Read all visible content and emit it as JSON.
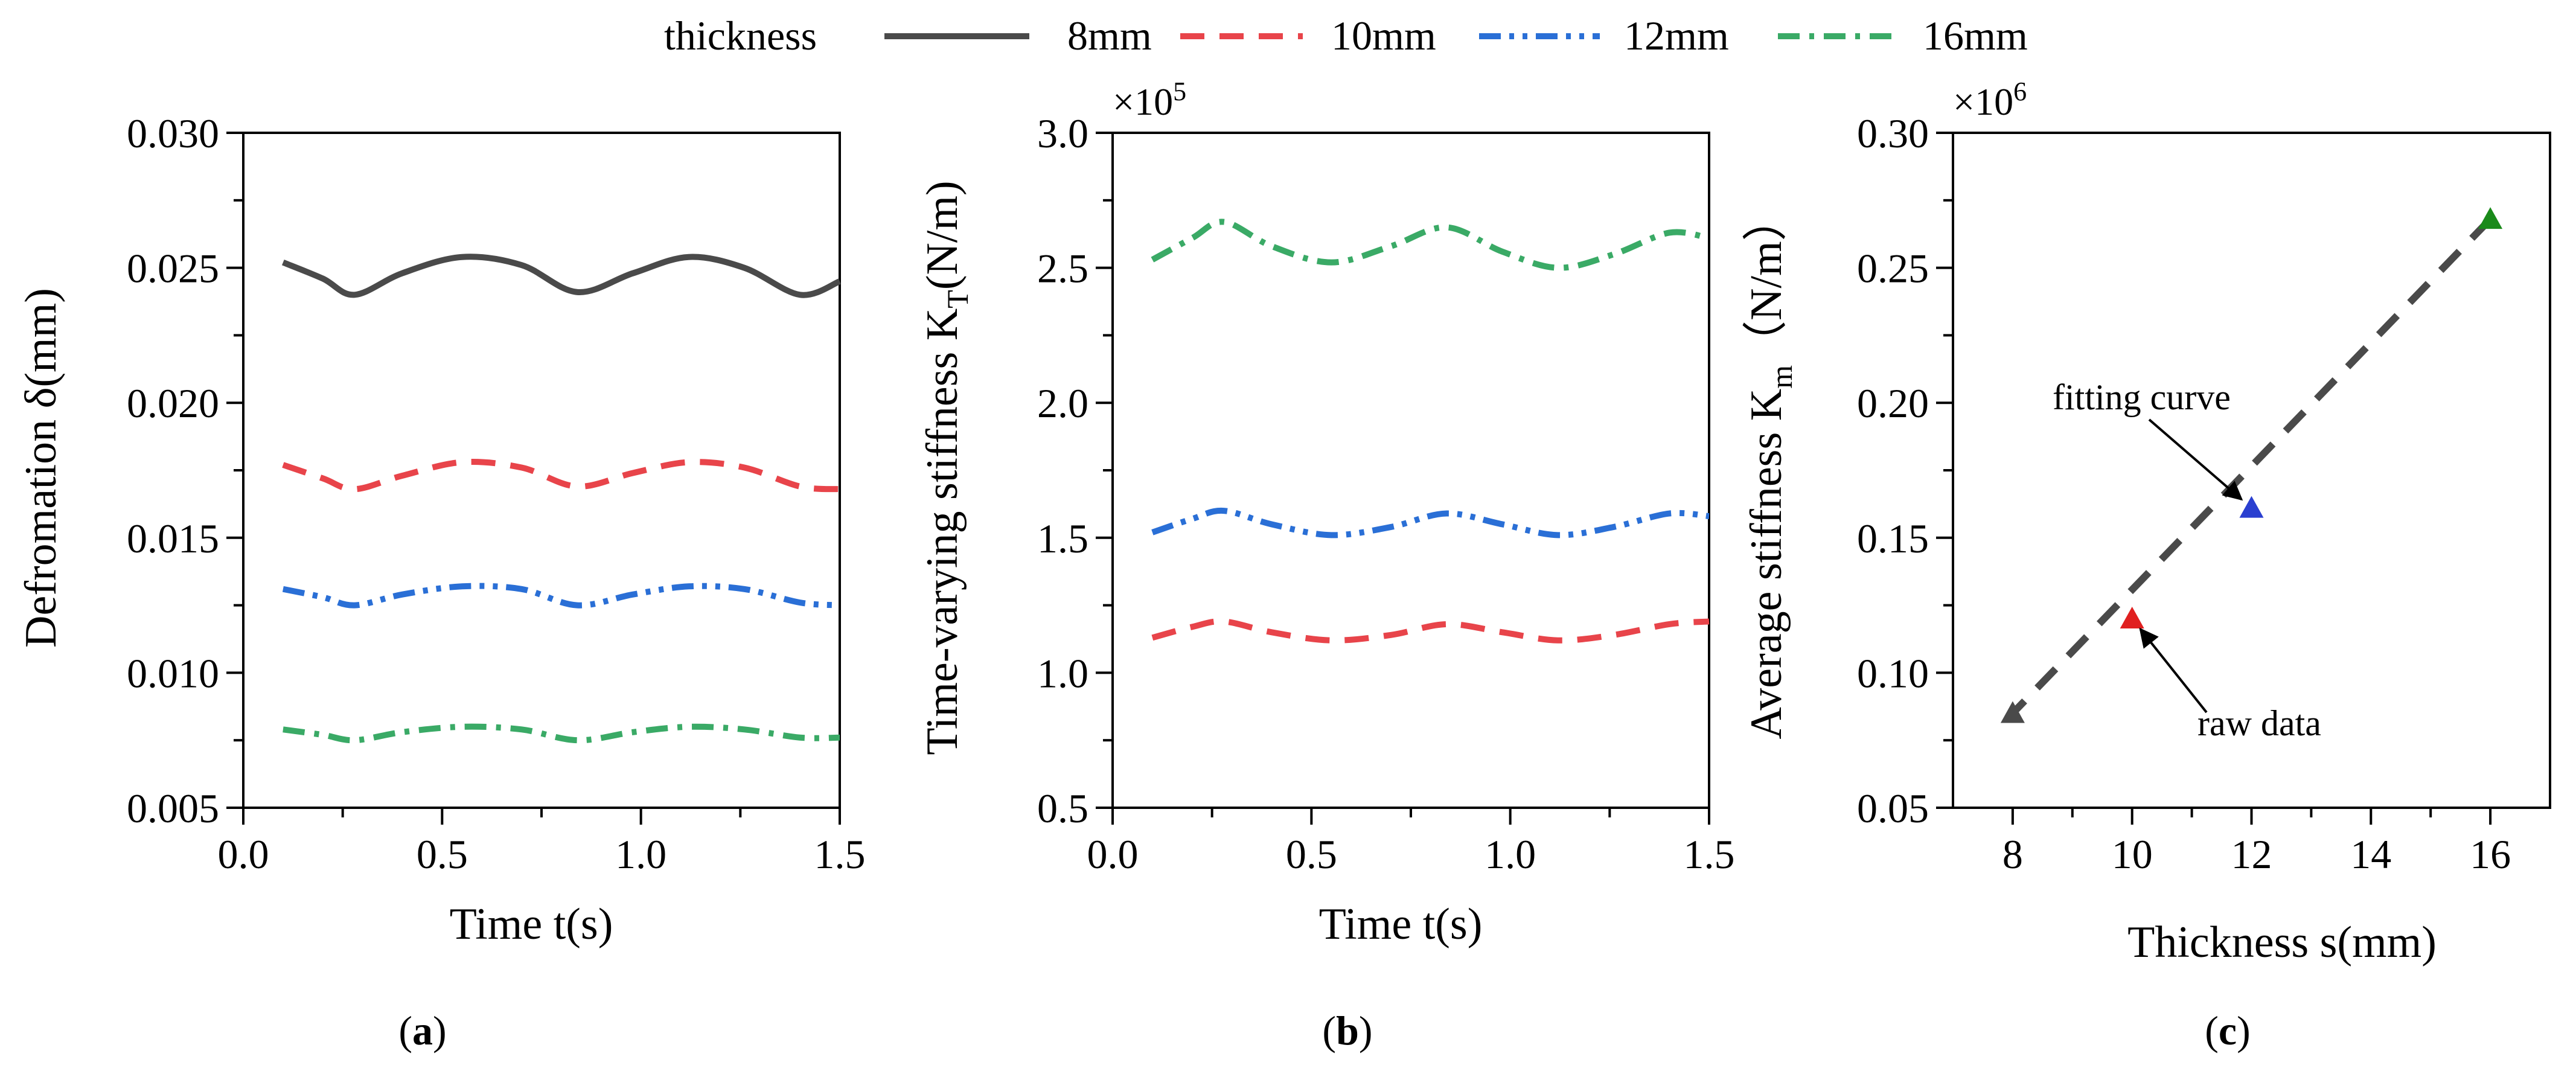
{
  "legend": {
    "title": "thickness",
    "entries": [
      {
        "label": "8mm",
        "color": "#4a4a4a",
        "style": "solid"
      },
      {
        "label": "10mm",
        "color": "#e8444a",
        "style": "dash"
      },
      {
        "label": "12mm",
        "color": "#2a6fd6",
        "style": "dashdotdot"
      },
      {
        "label": "16mm",
        "color": "#3aaa66",
        "style": "dashdot"
      }
    ]
  },
  "chart_data": [
    {
      "type": "line",
      "caption": "a",
      "title": "",
      "xlabel": "Time t(s)",
      "ylabel": "Defromation δ(mm)",
      "xlim": [
        0,
        1.5
      ],
      "ylim": [
        0.005,
        0.03
      ],
      "xticks": [
        0,
        0.5,
        1.0,
        1.5
      ],
      "xtick_labels": [
        "0.0",
        "0.5",
        "1.0",
        "1.5"
      ],
      "yticks": [
        0.005,
        0.01,
        0.015,
        0.02,
        0.025,
        0.03
      ],
      "ytick_labels": [
        "0.005",
        "0.010",
        "0.015",
        "0.020",
        "0.025",
        "0.030"
      ],
      "multiplier": "",
      "x": [
        0.1,
        0.2,
        0.28,
        0.4,
        0.55,
        0.7,
        0.84,
        0.98,
        1.12,
        1.26,
        1.4,
        1.5
      ],
      "series": [
        {
          "name": "8mm",
          "values": [
            0.0252,
            0.0246,
            0.024,
            0.0248,
            0.0254,
            0.0251,
            0.0241,
            0.0248,
            0.0254,
            0.025,
            0.024,
            0.0245
          ]
        },
        {
          "name": "10mm",
          "values": [
            0.0177,
            0.0172,
            0.0168,
            0.0173,
            0.0178,
            0.0176,
            0.0169,
            0.0174,
            0.0178,
            0.0176,
            0.0169,
            0.0168
          ]
        },
        {
          "name": "12mm",
          "values": [
            0.0131,
            0.0128,
            0.0125,
            0.0129,
            0.0132,
            0.0131,
            0.0125,
            0.0129,
            0.0132,
            0.0131,
            0.0126,
            0.0125
          ]
        },
        {
          "name": "16mm",
          "values": [
            0.0079,
            0.0077,
            0.0075,
            0.0078,
            0.008,
            0.0079,
            0.0075,
            0.0078,
            0.008,
            0.0079,
            0.0076,
            0.0076
          ]
        }
      ]
    },
    {
      "type": "line",
      "caption": "b",
      "title": "",
      "xlabel": "Time t(s)",
      "ylabel": "Time-varying stiffness K",
      "ylabel_sub": "T",
      "ylabel_suffix": "(N/m)",
      "xlim": [
        0,
        1.5
      ],
      "ylim": [
        0.5,
        3.0
      ],
      "xticks": [
        0,
        0.5,
        1.0,
        1.5
      ],
      "xtick_labels": [
        "0.0",
        "0.5",
        "1.0",
        "1.5"
      ],
      "yticks": [
        0.5,
        1.0,
        1.5,
        2.0,
        2.5,
        3.0
      ],
      "ytick_labels": [
        "0.5",
        "1.0",
        "1.5",
        "2.0",
        "2.5",
        "3.0"
      ],
      "multiplier": "×10",
      "multiplier_exp": "5",
      "x": [
        0.1,
        0.2,
        0.28,
        0.4,
        0.55,
        0.7,
        0.84,
        0.98,
        1.12,
        1.26,
        1.4,
        1.5
      ],
      "series": [
        {
          "name": "10mm",
          "values": [
            1.13,
            1.17,
            1.19,
            1.15,
            1.12,
            1.14,
            1.18,
            1.15,
            1.12,
            1.14,
            1.18,
            1.19
          ]
        },
        {
          "name": "12mm",
          "values": [
            1.52,
            1.57,
            1.6,
            1.55,
            1.51,
            1.54,
            1.59,
            1.55,
            1.51,
            1.54,
            1.59,
            1.58
          ]
        },
        {
          "name": "16mm",
          "values": [
            2.53,
            2.61,
            2.67,
            2.58,
            2.52,
            2.58,
            2.65,
            2.56,
            2.5,
            2.55,
            2.63,
            2.61
          ]
        }
      ]
    },
    {
      "type": "scatter",
      "caption": "c",
      "title": "",
      "xlabel": "Thickness s(mm)",
      "ylabel": "Average stiffness K",
      "ylabel_sub": "m",
      "ylabel_suffix": "（N/m）",
      "xlim": [
        7,
        17
      ],
      "ylim": [
        0.05,
        0.3
      ],
      "xticks": [
        8,
        10,
        12,
        14,
        16
      ],
      "xtick_labels": [
        "8",
        "10",
        "12",
        "14",
        "16"
      ],
      "yticks": [
        0.05,
        0.1,
        0.15,
        0.2,
        0.25,
        0.3
      ],
      "ytick_labels": [
        "0.05",
        "0.10",
        "0.15",
        "0.20",
        "0.25",
        "0.30"
      ],
      "multiplier": "×10",
      "multiplier_exp": "6",
      "points": [
        {
          "x": 8,
          "y": 0.085,
          "color": "#4a4a4a"
        },
        {
          "x": 10,
          "y": 0.12,
          "color": "#e02020"
        },
        {
          "x": 12,
          "y": 0.161,
          "color": "#2a3fd0"
        },
        {
          "x": 16,
          "y": 0.268,
          "color": "#1a8a1a"
        }
      ],
      "fit_line": {
        "x": [
          8,
          16
        ],
        "y": [
          0.085,
          0.268
        ]
      },
      "annotations": [
        {
          "text": "fitting curve",
          "target": [
            12,
            0.161
          ]
        },
        {
          "text": "raw data",
          "target": [
            10,
            0.12
          ]
        }
      ]
    }
  ]
}
